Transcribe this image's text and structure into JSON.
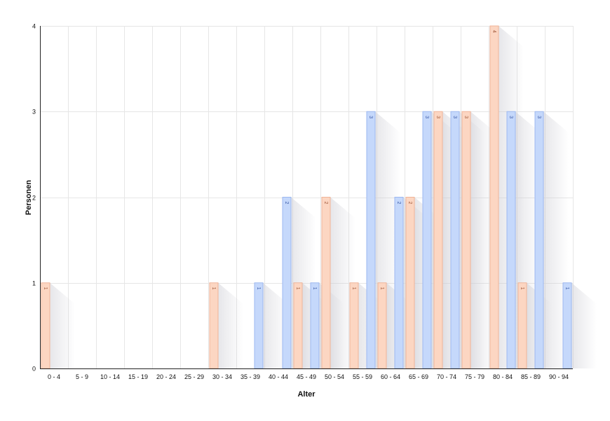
{
  "chart_data": {
    "type": "bar",
    "xlabel": "Alter",
    "ylabel": "Personen",
    "ylim": [
      0,
      4
    ],
    "yticks": [
      "0",
      "1",
      "2",
      "3",
      "4"
    ],
    "grid": true,
    "categories": [
      "0 - 4",
      "5 - 9",
      "10 - 14",
      "15 - 19",
      "20 - 24",
      "25 - 29",
      "30 - 34",
      "35 - 39",
      "40 - 44",
      "45 - 49",
      "50 - 54",
      "55 - 59",
      "60 - 64",
      "65 - 69",
      "70 - 74",
      "75 - 79",
      "80 - 84",
      "85 - 89",
      "90 - 94"
    ],
    "series": [
      {
        "values": [
          0,
          0,
          0,
          0,
          0,
          0,
          0,
          1,
          2,
          1,
          0,
          3,
          2,
          3,
          3,
          0,
          3,
          3,
          1
        ],
        "color": "#c5d8fb",
        "stroke": "#9db8f0",
        "label_color": "#3a5aa8"
      },
      {
        "values": [
          1,
          0,
          0,
          0,
          0,
          0,
          1,
          0,
          0,
          1,
          2,
          1,
          1,
          2,
          3,
          3,
          4,
          1,
          0
        ],
        "color": "#fcd6c2",
        "stroke": "#f0b498",
        "label_color": "#a0583a"
      }
    ]
  }
}
